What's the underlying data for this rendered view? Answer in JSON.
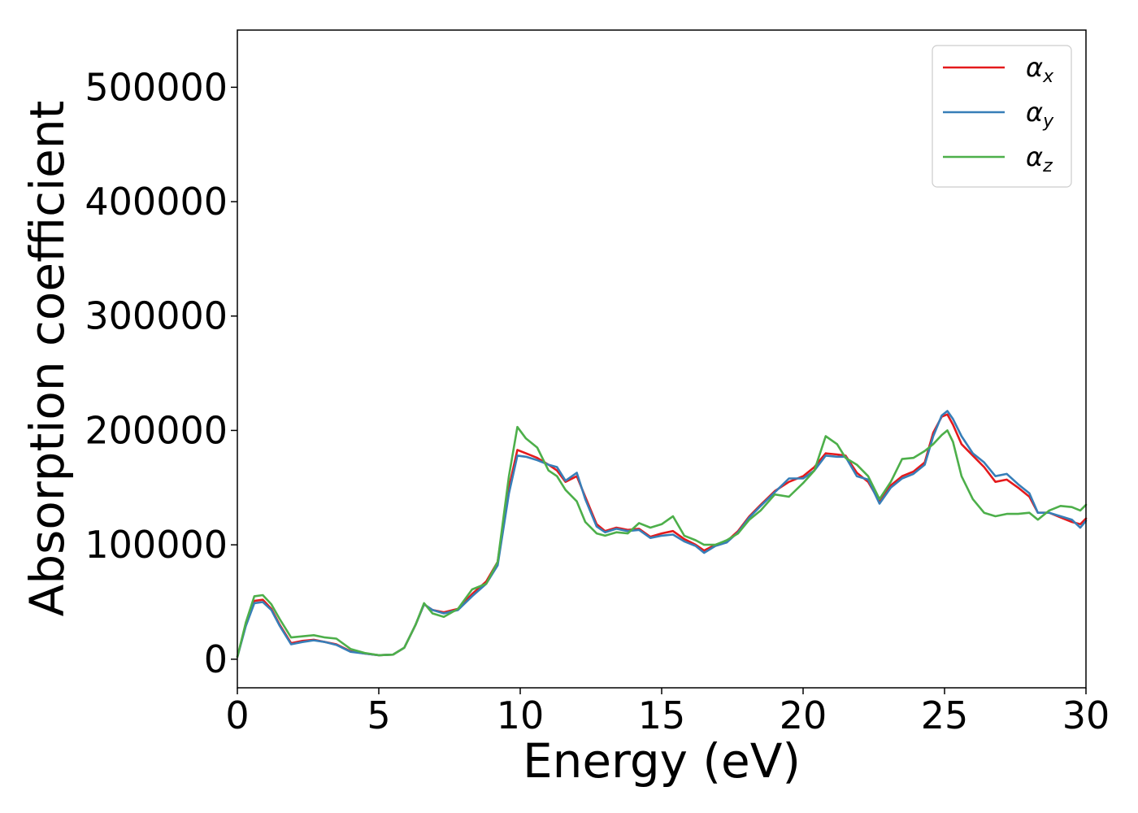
{
  "chart_data": {
    "type": "line",
    "title": "",
    "xlabel": "Energy (eV)",
    "ylabel": "Absorption coefficient",
    "xlim": [
      0,
      30
    ],
    "ylim": [
      -25000,
      550000
    ],
    "xticks": [
      "0",
      "5",
      "10",
      "15",
      "20",
      "25",
      "30"
    ],
    "yticks": [
      "0",
      "100000",
      "200000",
      "300000",
      "400000",
      "500000"
    ],
    "grid": false,
    "legend_position": "top-right",
    "legend": [
      {
        "symbol": "α",
        "sub": "x"
      },
      {
        "symbol": "α",
        "sub": "y"
      },
      {
        "symbol": "α",
        "sub": "z"
      }
    ],
    "series": [
      {
        "name": "αx",
        "color": "#e41a1c",
        "x": [
          0,
          0.3,
          0.6,
          0.9,
          1.2,
          1.5,
          1.9,
          2.3,
          2.7,
          3.1,
          3.5,
          4.0,
          4.5,
          5.0,
          5.5,
          5.9,
          6.3,
          6.6,
          6.9,
          7.3,
          7.8,
          8.3,
          8.8,
          9.2,
          9.6,
          9.9,
          10.2,
          10.6,
          11.0,
          11.3,
          11.6,
          12.0,
          12.3,
          12.7,
          13.0,
          13.4,
          13.8,
          14.2,
          14.6,
          15.0,
          15.4,
          15.8,
          16.2,
          16.5,
          16.9,
          17.3,
          17.7,
          18.1,
          18.5,
          19.0,
          19.5,
          20.0,
          20.4,
          20.8,
          21.2,
          21.5,
          21.9,
          22.3,
          22.7,
          23.1,
          23.5,
          23.9,
          24.3,
          24.6,
          24.9,
          25.1,
          25.3,
          25.6,
          26.0,
          26.4,
          26.8,
          27.2,
          27.6,
          28.0,
          28.3,
          28.7,
          29.1,
          29.5,
          29.8,
          30.0
        ],
        "y": [
          2000,
          30000,
          51000,
          52000,
          44000,
          30000,
          14000,
          16000,
          17000,
          15000,
          13000,
          7000,
          5000,
          3500,
          4000,
          10000,
          30000,
          48000,
          43000,
          41000,
          44000,
          57000,
          68000,
          85000,
          150000,
          183000,
          180000,
          176000,
          170000,
          165000,
          155000,
          160000,
          142000,
          118000,
          112000,
          115000,
          113000,
          114000,
          107000,
          110000,
          112000,
          105000,
          100000,
          95000,
          100000,
          103000,
          112000,
          125000,
          135000,
          147000,
          155000,
          160000,
          168000,
          180000,
          179000,
          178000,
          163000,
          155000,
          138000,
          152000,
          160000,
          164000,
          172000,
          198000,
          212000,
          214000,
          205000,
          188000,
          178000,
          168000,
          155000,
          157000,
          150000,
          142000,
          128000,
          128000,
          124000,
          120000,
          118000,
          123000
        ]
      },
      {
        "name": "αy",
        "color": "#377eb8",
        "x": [
          0,
          0.3,
          0.6,
          0.9,
          1.2,
          1.5,
          1.9,
          2.3,
          2.7,
          3.1,
          3.5,
          4.0,
          4.5,
          5.0,
          5.5,
          5.9,
          6.3,
          6.6,
          6.9,
          7.3,
          7.8,
          8.3,
          8.8,
          9.2,
          9.6,
          9.9,
          10.2,
          10.6,
          11.0,
          11.3,
          11.6,
          12.0,
          12.3,
          12.7,
          13.0,
          13.4,
          13.8,
          14.2,
          14.6,
          15.0,
          15.4,
          15.8,
          16.2,
          16.5,
          16.9,
          17.3,
          17.7,
          18.1,
          18.5,
          19.0,
          19.5,
          20.0,
          20.4,
          20.8,
          21.2,
          21.5,
          21.9,
          22.3,
          22.7,
          23.1,
          23.5,
          23.9,
          24.3,
          24.6,
          24.9,
          25.1,
          25.3,
          25.6,
          26.0,
          26.4,
          26.8,
          27.2,
          27.6,
          28.0,
          28.3,
          28.7,
          29.1,
          29.5,
          29.8,
          30.0
        ],
        "y": [
          2000,
          29000,
          49000,
          50000,
          43000,
          29000,
          13000,
          15000,
          16500,
          15000,
          12500,
          6500,
          5000,
          3500,
          4000,
          10000,
          30000,
          48000,
          43000,
          40000,
          43000,
          55000,
          66000,
          82000,
          145000,
          178000,
          177000,
          174000,
          170000,
          168000,
          156000,
          163000,
          140000,
          116000,
          111000,
          114000,
          112000,
          113000,
          106000,
          108000,
          109000,
          103000,
          99000,
          93000,
          99000,
          102000,
          111000,
          124000,
          134000,
          146000,
          158000,
          158000,
          165000,
          178000,
          177000,
          177000,
          160000,
          157000,
          136000,
          150000,
          158000,
          162000,
          170000,
          195000,
          213000,
          217000,
          210000,
          195000,
          180000,
          172000,
          160000,
          162000,
          153000,
          145000,
          128000,
          128000,
          125000,
          122000,
          115000,
          121000
        ]
      },
      {
        "name": "αz",
        "color": "#4daf4a",
        "x": [
          0,
          0.3,
          0.6,
          0.9,
          1.2,
          1.5,
          1.9,
          2.3,
          2.7,
          3.1,
          3.5,
          4.0,
          4.5,
          5.0,
          5.5,
          5.9,
          6.3,
          6.6,
          6.9,
          7.3,
          7.8,
          8.3,
          8.8,
          9.2,
          9.6,
          9.9,
          10.2,
          10.6,
          11.0,
          11.3,
          11.6,
          12.0,
          12.3,
          12.7,
          13.0,
          13.4,
          13.8,
          14.2,
          14.6,
          15.0,
          15.4,
          15.8,
          16.2,
          16.5,
          16.9,
          17.3,
          17.7,
          18.1,
          18.5,
          19.0,
          19.5,
          20.0,
          20.4,
          20.8,
          21.2,
          21.5,
          21.9,
          22.3,
          22.7,
          23.1,
          23.5,
          23.9,
          24.3,
          24.6,
          24.9,
          25.1,
          25.3,
          25.6,
          26.0,
          26.4,
          26.8,
          27.2,
          27.6,
          28.0,
          28.3,
          28.7,
          29.1,
          29.5,
          29.8,
          30.0
        ],
        "y": [
          2000,
          32000,
          55000,
          56000,
          48000,
          35000,
          19000,
          20000,
          21000,
          19000,
          18000,
          9000,
          5500,
          3500,
          4000,
          10000,
          30000,
          49000,
          40000,
          37000,
          44000,
          61000,
          66000,
          85000,
          160000,
          203000,
          193000,
          185000,
          165000,
          160000,
          148000,
          138000,
          120000,
          110000,
          108000,
          111000,
          110000,
          119000,
          115000,
          118000,
          125000,
          108000,
          104000,
          100000,
          100000,
          104000,
          110000,
          122000,
          130000,
          144000,
          142000,
          154000,
          165000,
          195000,
          188000,
          176000,
          170000,
          160000,
          140000,
          155000,
          175000,
          176000,
          182000,
          188000,
          196000,
          200000,
          190000,
          160000,
          140000,
          128000,
          125000,
          127000,
          127000,
          128000,
          122000,
          130000,
          134000,
          133000,
          130000,
          135000
        ]
      }
    ]
  }
}
